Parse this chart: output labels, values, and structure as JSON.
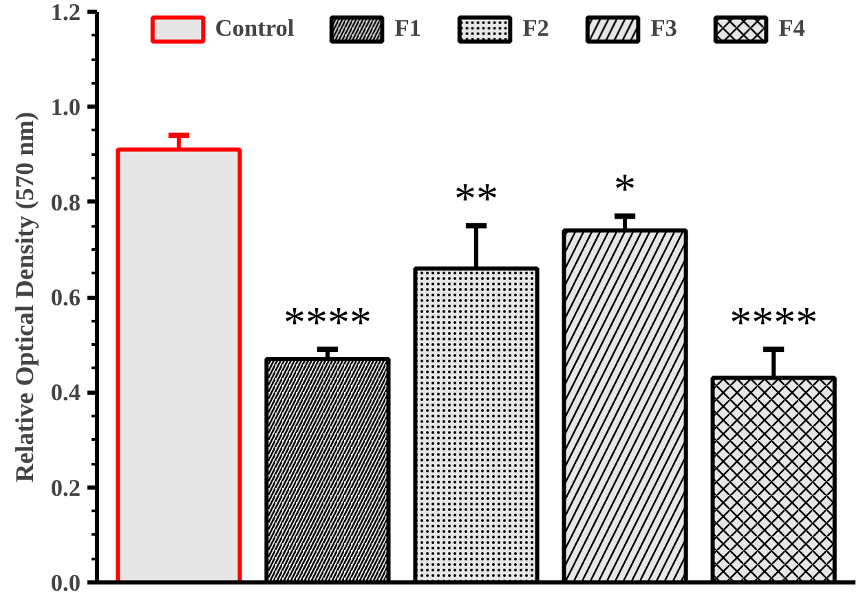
{
  "chart_data": {
    "type": "bar",
    "ylabel": "Relative Optical Density (570 nm)",
    "categories": [
      null,
      null,
      null,
      null,
      null
    ],
    "series": [
      {
        "name": "Control",
        "color": "#ff0000",
        "values": [
          0.91,
          null,
          null,
          null,
          null
        ],
        "errors": [
          [
            0.91,
            0.94
          ],
          null,
          null,
          null,
          null
        ],
        "value_labels": [
          null,
          null,
          null,
          null,
          null
        ]
      },
      {
        "name": "F1",
        "color": "#e6e6e6",
        "values": [
          null,
          0.47,
          null,
          null,
          null
        ],
        "errors": [
          null,
          [
            0.47,
            0.49
          ],
          null,
          null,
          null
        ],
        "value_labels": [
          null,
          "****",
          null,
          null,
          null
        ]
      },
      {
        "name": "F2",
        "color": "#e6e6e6",
        "values": [
          null,
          null,
          0.66,
          null,
          null
        ],
        "errors": [
          null,
          null,
          [
            0.66,
            0.75
          ],
          null,
          null
        ],
        "value_labels": [
          null,
          null,
          "**",
          null,
          null
        ]
      },
      {
        "name": "F3",
        "color": "#e6e6e6",
        "values": [
          null,
          null,
          null,
          0.74,
          null
        ],
        "errors": [
          null,
          null,
          null,
          [
            0.74,
            0.77
          ],
          null
        ],
        "value_labels": [
          null,
          null,
          null,
          "*",
          null
        ]
      },
      {
        "name": "F4",
        "color": "#e6e6e6",
        "values": [
          null,
          null,
          null,
          null,
          0.43
        ],
        "errors": [
          null,
          null,
          null,
          null,
          [
            0.43,
            0.49
          ]
        ],
        "value_labels": [
          null,
          null,
          null,
          null,
          "****"
        ]
      }
    ],
    "ylim": [
      0,
      1.2
    ],
    "yticks": [
      {
        "value": 0,
        "label": "0.0"
      },
      0.2,
      0.4,
      0.6,
      0.8,
      {
        "value": 1,
        "label": "1.0"
      },
      1.2
    ],
    "grid": false,
    "legend": "top",
    "tick_labels": "y"
  }
}
